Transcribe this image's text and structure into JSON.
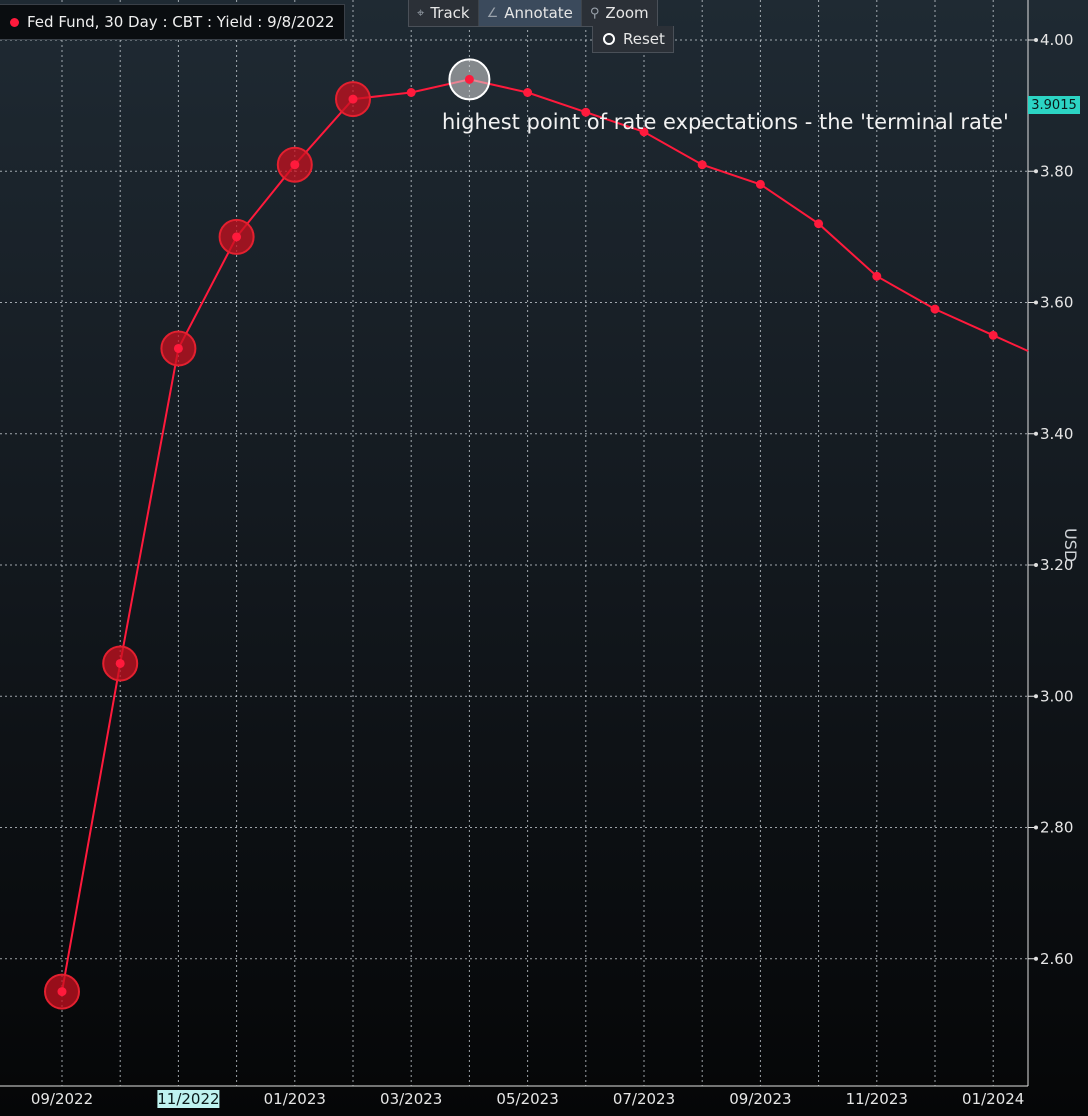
{
  "legend": {
    "label": "Fed Fund, 30 Day : CBT : Yield : 9/8/2022",
    "color": "#ff1a3c"
  },
  "toolbar": {
    "track": {
      "label": "Track",
      "icon": "crosshair-icon"
    },
    "annotate": {
      "label": "Annotate",
      "icon": "pencil-icon"
    },
    "zoom": {
      "label": "Zoom",
      "icon": "magnifier-icon"
    },
    "reset": {
      "label": "Reset"
    }
  },
  "annotation": {
    "text": "highest point of rate expectations - the 'terminal rate'"
  },
  "last_value": "3.9015",
  "y_unit": "USD",
  "chart_data": {
    "type": "line",
    "title": "",
    "xlabel": "",
    "ylabel": "USD",
    "grid": true,
    "ylim": [
      2.45,
      4.05
    ],
    "y_ticks": [
      "4.00",
      "3.80",
      "3.60",
      "3.40",
      "3.20",
      "3.00",
      "2.80",
      "2.60"
    ],
    "x_ticks": [
      "09/2022",
      "11/2022",
      "01/2023",
      "03/2023",
      "05/2023",
      "07/2023",
      "09/2023",
      "11/2023",
      "01/2024"
    ],
    "highlighted_x_tick": "11/2022",
    "series": [
      {
        "color": "#ff1a3c",
        "x": [
          "09/2022",
          "10/2022",
          "11/2022",
          "12/2022",
          "01/2023",
          "02/2023",
          "03/2023",
          "04/2023",
          "05/2023",
          "06/2023",
          "07/2023",
          "08/2023",
          "09/2023",
          "10/2023",
          "11/2023",
          "12/2023",
          "01/2024"
        ],
        "values": [
          2.55,
          3.05,
          3.53,
          3.7,
          3.81,
          3.91,
          3.92,
          3.94,
          3.92,
          3.89,
          3.86,
          3.81,
          3.78,
          3.72,
          3.64,
          3.59,
          3.55
        ],
        "highlighted_points": [
          "09/2022",
          "10/2022",
          "11/2022",
          "12/2022",
          "01/2023",
          "02/2023"
        ],
        "selected_point": "04/2023"
      }
    ]
  }
}
